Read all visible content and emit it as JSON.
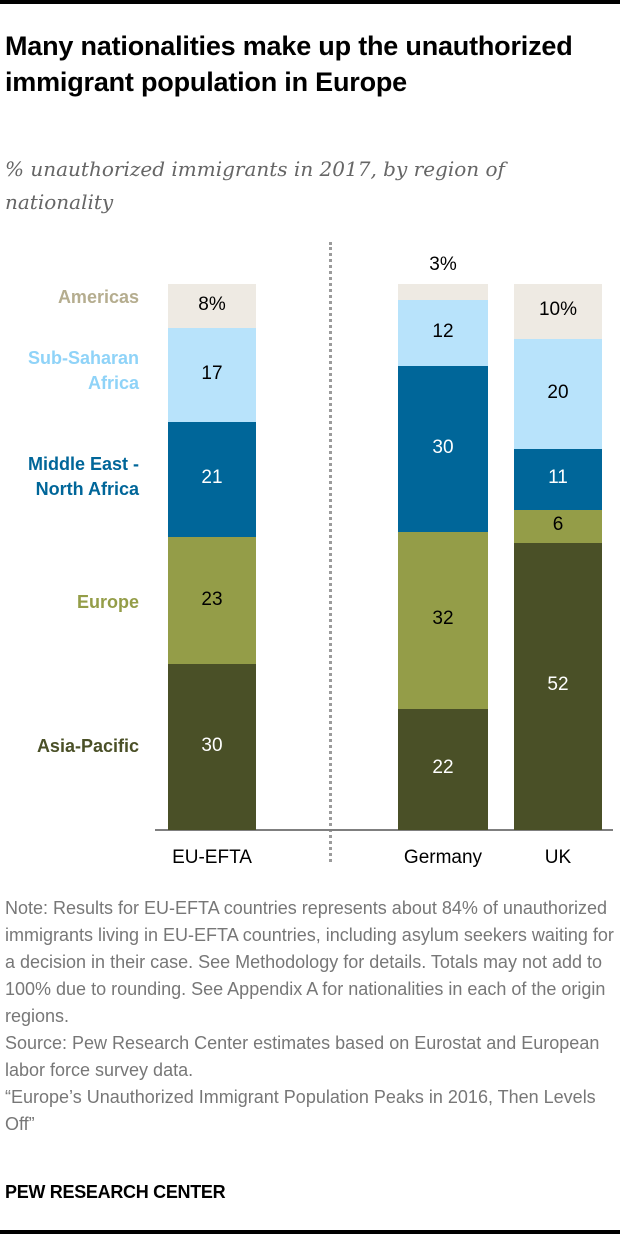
{
  "header": {
    "title": "Many nationalities make up the unauthorized immigrant population in Europe",
    "subtitle": "% unauthorized immigrants in 2017, by region of nationality"
  },
  "chart_data": {
    "type": "bar",
    "stacked": true,
    "orientation": "vertical",
    "title": "Many nationalities make up the unauthorized immigrant population in Europe",
    "subtitle": "% unauthorized immigrants in 2017, by region of nationality",
    "xlabel": "",
    "ylabel": "",
    "ylim": [
      0,
      100
    ],
    "grid": false,
    "legend": "left",
    "categories": [
      "EU-EFTA",
      "Germany",
      "UK"
    ],
    "series": [
      {
        "name": "Asia-Pacific",
        "color": "#4a5027",
        "text_color": "#ffffff",
        "values": [
          30,
          22,
          52
        ],
        "labels": [
          "30",
          "22",
          "52"
        ]
      },
      {
        "name": "Europe",
        "color": "#949d48",
        "text_color": "#000000",
        "values": [
          23,
          32,
          6
        ],
        "labels": [
          "23",
          "32",
          "6"
        ]
      },
      {
        "name": "Middle East - North Africa",
        "color": "#006699",
        "text_color": "#ffffff",
        "values": [
          21,
          30,
          11
        ],
        "labels": [
          "21",
          "30",
          "11"
        ]
      },
      {
        "name": "Sub-Saharan Africa",
        "color": "#b8e3fb",
        "text_color": "#000000",
        "values": [
          17,
          12,
          20
        ],
        "labels": [
          "17",
          "12",
          "20"
        ]
      },
      {
        "name": "Americas",
        "color": "#eeeae3",
        "text_color": "#000000",
        "values": [
          8,
          3,
          10
        ],
        "labels": [
          "8%",
          "3%",
          "10%"
        ]
      }
    ]
  },
  "legend_labels": {
    "americas": "Americas",
    "sub_saharan_1": "Sub-Saharan",
    "sub_saharan_2": "Africa",
    "mena_1": "Middle East -",
    "mena_2": "North Africa",
    "europe": "Europe",
    "asia_pacific": "Asia-Pacific"
  },
  "legend_colors": {
    "americas": "#b5ad8f",
    "sub_saharan": "#8fd3f8",
    "mena": "#006699",
    "europe": "#949d48",
    "asia_pacific": "#4a5027"
  },
  "footer": {
    "note": "Note: Results for EU-EFTA countries represents about 84% of unauthorized immigrants living in EU-EFTA countries, including asylum seekers waiting for a decision in their case. See Methodology for details. Totals may not add to 100% due to rounding. See Appendix A for nationalities in each of the origin regions.",
    "source": "Source: Pew Research Center estimates based on Eurostat and European labor force survey data.",
    "report": "“Europe’s Unauthorized Immigrant Population Peaks in 2016, Then Levels Off”",
    "brand": "PEW RESEARCH CENTER"
  }
}
